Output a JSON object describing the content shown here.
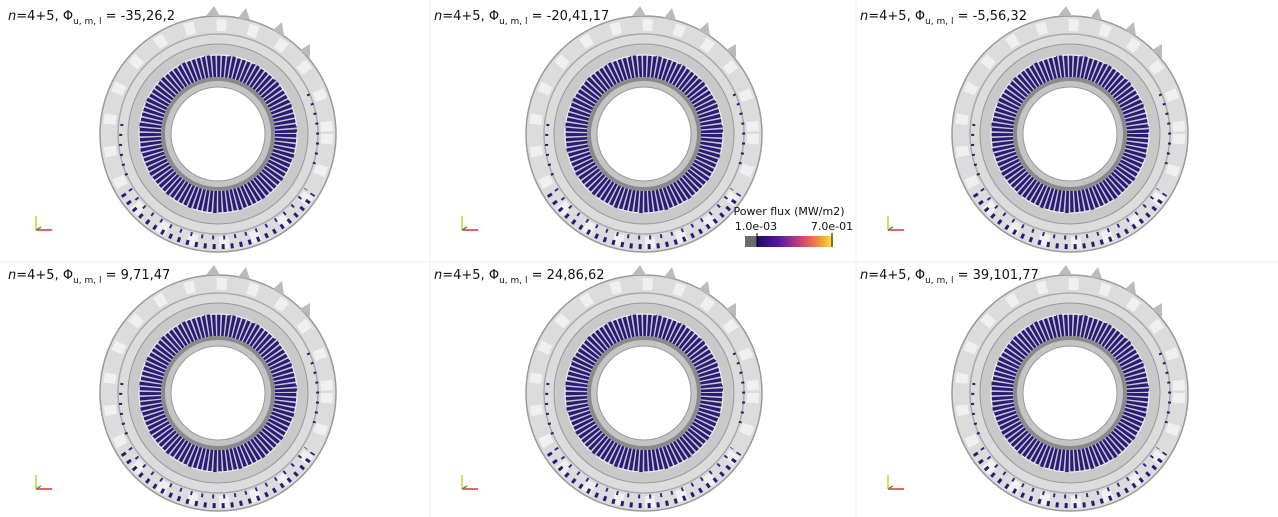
{
  "panels": [
    {
      "variable": "n",
      "prefix": "=4+5, Φ",
      "subscript": "u, m, l",
      "phase": " = -35,26,2"
    },
    {
      "variable": "n",
      "prefix": "=4+5, Φ",
      "subscript": "u, m, l",
      "phase": " = -20,41,17"
    },
    {
      "variable": "n",
      "prefix": "=4+5, Φ",
      "subscript": "u, m, l",
      "phase": " = -5,56,32"
    },
    {
      "variable": "n",
      "prefix": "=4+5, Φ",
      "subscript": "u, m, l",
      "phase": " = 9,71,47"
    },
    {
      "variable": "n",
      "prefix": "=4+5, Φ",
      "subscript": "u, m, l",
      "phase": " = 24,86,62"
    },
    {
      "variable": "n",
      "prefix": "=4+5, Φ",
      "subscript": "u, m, l",
      "phase": " = 39,101,77"
    }
  ],
  "colorbar": {
    "title": "Power flux (MW/m2)",
    "min_label": "1.0e-03",
    "max_label": "7.0e-01"
  }
}
